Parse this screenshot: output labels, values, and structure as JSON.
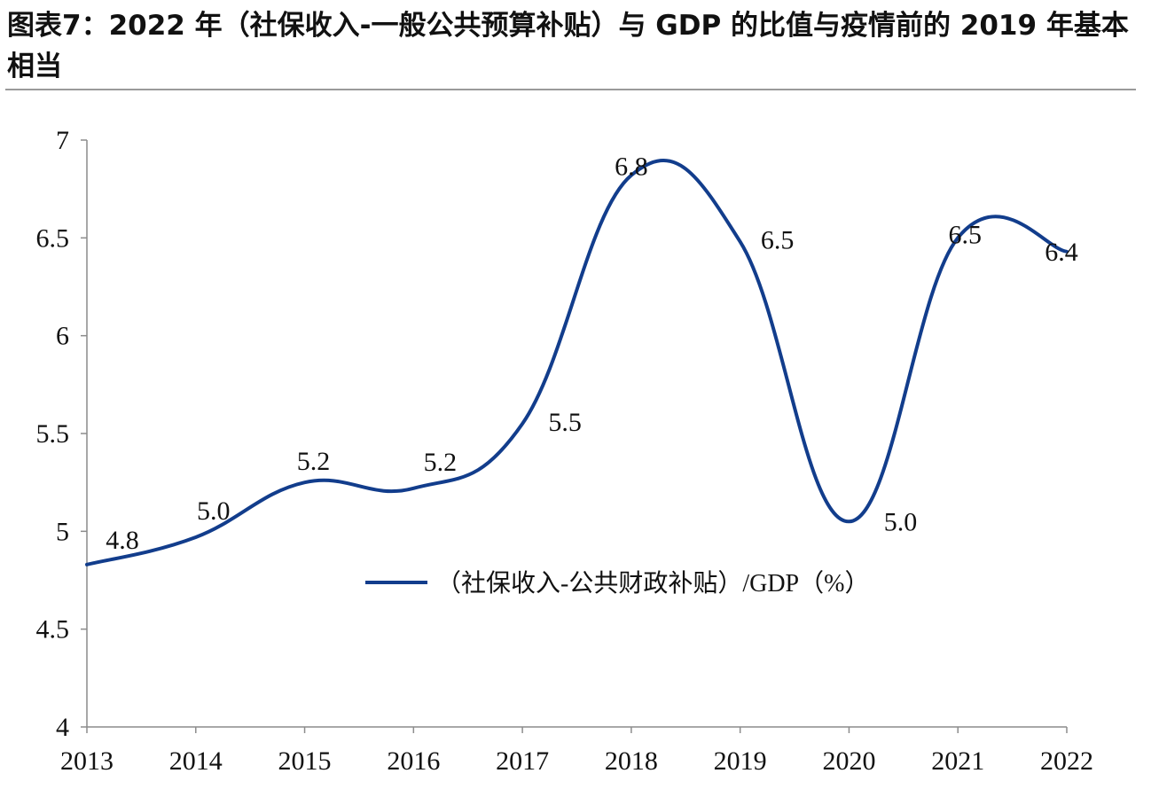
{
  "title": "图表7：2022 年（社保收入-一般公共预算补贴）与 GDP 的比值与疫情前的 2019 年基本相当",
  "chart_data": {
    "type": "line",
    "categories": [
      "2013",
      "2014",
      "2015",
      "2016",
      "2017",
      "2018",
      "2019",
      "2020",
      "2021",
      "2022"
    ],
    "series": [
      {
        "name": "（社保收入-公共财政补贴）/GDP（%）",
        "values": [
          4.83,
          4.97,
          5.25,
          5.22,
          5.55,
          6.82,
          6.48,
          5.05,
          6.5,
          6.43
        ],
        "labels": [
          "4.8",
          "5.0",
          "5.2",
          "5.2",
          "5.5",
          "6.8",
          "6.5",
          "5.0",
          "6.5",
          "6.4"
        ],
        "color": "#123d8c"
      }
    ],
    "y_ticks": [
      "4",
      "4.5",
      "5",
      "5.5",
      "6",
      "6.5",
      "7"
    ],
    "ylim": [
      4,
      7
    ],
    "grid": false,
    "legend": "center"
  }
}
